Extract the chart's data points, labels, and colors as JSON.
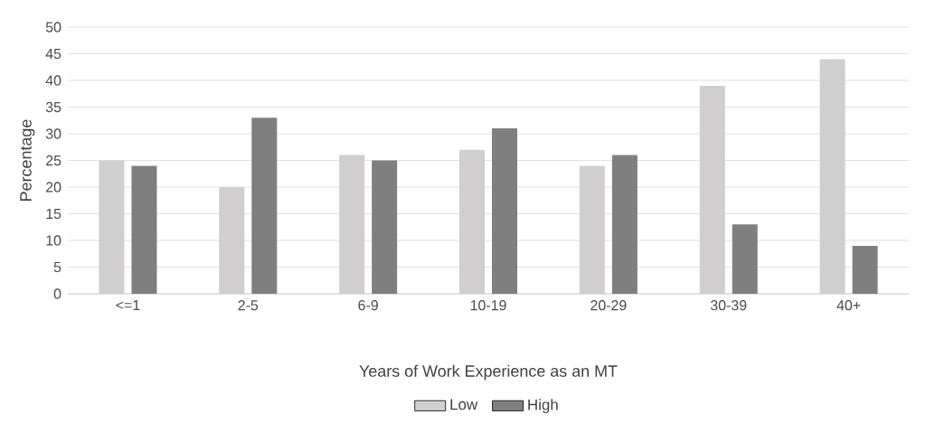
{
  "chart_data": {
    "type": "bar",
    "xlabel": "Years of Work Experience as an MT",
    "ylabel": "Percentage",
    "categories": [
      "<=1",
      "2-5",
      "6-9",
      "10-19",
      "20-29",
      "30-39",
      "40+"
    ],
    "series": [
      {
        "name": "Low",
        "color": "#d0cece",
        "values": [
          25,
          20,
          26,
          27,
          24,
          39,
          44
        ]
      },
      {
        "name": "High",
        "color": "#7f7f7f",
        "values": [
          24,
          33,
          25,
          31,
          26,
          13,
          9
        ]
      }
    ],
    "ylim": [
      0,
      50
    ],
    "yticks": [
      0,
      5,
      10,
      15,
      20,
      25,
      30,
      35,
      40,
      45,
      50
    ],
    "grid": "y",
    "legend": "bottom"
  }
}
